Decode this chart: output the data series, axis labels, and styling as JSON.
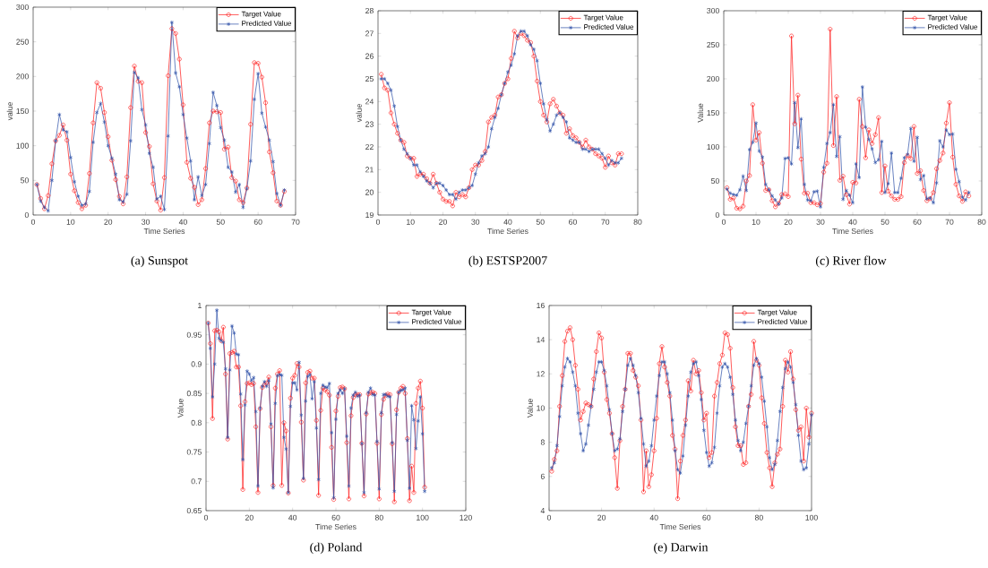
{
  "chart_data": [
    {
      "type": "line",
      "title": "(a) Sunspot",
      "xlabel": "Time Series",
      "ylabel": "value",
      "legend": "top right",
      "xlim": [
        0,
        70
      ],
      "ylim": [
        0,
        300
      ],
      "xticks": [
        0,
        10,
        20,
        30,
        40,
        50,
        60,
        70
      ],
      "yticks": [
        0,
        50,
        100,
        150,
        200,
        250,
        300
      ],
      "x": [
        1,
        2,
        3,
        4,
        5,
        6,
        7,
        8,
        9,
        10,
        11,
        12,
        13,
        14,
        15,
        16,
        17,
        18,
        19,
        20,
        21,
        22,
        23,
        24,
        25,
        26,
        27,
        28,
        29,
        30,
        31,
        32,
        33,
        34,
        35,
        36,
        37,
        38,
        39,
        40,
        41,
        42,
        43,
        44,
        45,
        46,
        47,
        48,
        49,
        50,
        51,
        52,
        53,
        54,
        55,
        56,
        57,
        58,
        59,
        60,
        61,
        62,
        63,
        64,
        65,
        66,
        67
      ],
      "series": [
        {
          "name": "Target Value",
          "color": "#ff2020",
          "marker": "circle",
          "values": [
            44,
            24,
            9,
            28,
            74,
            107,
            115,
            130,
            108,
            59,
            35,
            18,
            9,
            14,
            60,
            133,
            191,
            183,
            148,
            113,
            79,
            51,
            27,
            16,
            55,
            155,
            215,
            193,
            191,
            119,
            99,
            45,
            20,
            7,
            54,
            201,
            269,
            262,
            225,
            159,
            76,
            53,
            40,
            15,
            22,
            67,
            133,
            150,
            149,
            148,
            95,
            98,
            54,
            49,
            22,
            18,
            39,
            131,
            220,
            219,
            199,
            162,
            91,
            61,
            20,
            14,
            34
          ]
        },
        {
          "name": "Predicted Value",
          "color": "#3355aa",
          "marker": "cross",
          "values": [
            44,
            20,
            11,
            6,
            50,
            107,
            145,
            123,
            120,
            83,
            48,
            27,
            14,
            16,
            34,
            105,
            148,
            161,
            134,
            100,
            82,
            59,
            22,
            19,
            30,
            107,
            206,
            198,
            152,
            130,
            89,
            69,
            23,
            27,
            8,
            114,
            278,
            205,
            185,
            145,
            111,
            78,
            22,
            55,
            28,
            44,
            103,
            177,
            158,
            126,
            108,
            69,
            62,
            33,
            44,
            11,
            38,
            78,
            167,
            204,
            147,
            127,
            108,
            77,
            31,
            14,
            36
          ]
        }
      ]
    },
    {
      "type": "line",
      "title": "(b) ESTSP2007",
      "xlabel": "Time Series",
      "ylabel": "value",
      "legend": "top right",
      "xlim": [
        0,
        80
      ],
      "ylim": [
        19,
        28
      ],
      "xticks": [
        0,
        10,
        20,
        30,
        40,
        50,
        60,
        70,
        80
      ],
      "yticks": [
        19,
        20,
        21,
        22,
        23,
        24,
        25,
        26,
        27,
        28
      ],
      "x": [
        1,
        2,
        3,
        4,
        5,
        6,
        7,
        8,
        9,
        10,
        11,
        12,
        13,
        14,
        15,
        16,
        17,
        18,
        19,
        20,
        21,
        22,
        23,
        24,
        25,
        26,
        27,
        28,
        29,
        30,
        31,
        32,
        33,
        34,
        35,
        36,
        37,
        38,
        39,
        40,
        41,
        42,
        43,
        44,
        45,
        46,
        47,
        48,
        49,
        50,
        51,
        52,
        53,
        54,
        55,
        56,
        57,
        58,
        59,
        60,
        61,
        62,
        63,
        64,
        65,
        66,
        67,
        68,
        69,
        70,
        71,
        72,
        73,
        74,
        75
      ],
      "series": [
        {
          "name": "Target Value",
          "color": "#ff2020",
          "marker": "circle",
          "values": [
            25.2,
            24.6,
            24.5,
            23.5,
            23.0,
            22.6,
            22.3,
            22.2,
            21.6,
            21.5,
            21.5,
            20.7,
            20.8,
            20.8,
            20.6,
            20.4,
            20.8,
            20.4,
            20.0,
            19.7,
            19.6,
            19.6,
            19.4,
            20.0,
            19.8,
            19.9,
            19.8,
            20.2,
            21.0,
            21.2,
            21.2,
            21.4,
            21.8,
            23.1,
            23.3,
            23.4,
            24.2,
            24.3,
            24.8,
            25.0,
            25.9,
            27.1,
            26.8,
            27.0,
            26.9,
            26.7,
            26.6,
            26.0,
            24.9,
            24.0,
            23.4,
            23.1,
            23.9,
            24.1,
            23.8,
            23.5,
            23.4,
            22.6,
            22.8,
            22.5,
            22.4,
            22.2,
            22.0,
            22.3,
            22.0,
            21.9,
            21.7,
            21.6,
            21.5,
            21.1,
            21.6,
            21.3,
            21.2,
            21.7,
            21.7
          ]
        },
        {
          "name": "Predicted Value",
          "color": "#3355aa",
          "marker": "cross",
          "values": [
            25.0,
            25.0,
            24.8,
            24.5,
            23.8,
            22.9,
            22.3,
            21.9,
            21.7,
            21.5,
            21.2,
            21.2,
            20.9,
            20.7,
            20.5,
            20.4,
            20.2,
            20.4,
            20.4,
            20.3,
            20.1,
            19.9,
            19.9,
            19.7,
            20.0,
            20.1,
            20.1,
            20.2,
            20.3,
            20.8,
            21.3,
            21.6,
            21.7,
            22.0,
            22.8,
            23.3,
            23.7,
            24.3,
            24.8,
            25.3,
            25.6,
            26.1,
            26.9,
            27.1,
            27.1,
            26.9,
            26.5,
            26.3,
            25.8,
            24.8,
            23.9,
            23.2,
            22.7,
            23.0,
            23.4,
            23.5,
            23.3,
            23.1,
            22.4,
            22.3,
            22.2,
            22.2,
            21.9,
            21.9,
            21.8,
            21.9,
            21.9,
            21.9,
            21.7,
            21.5,
            21.2,
            21.4,
            21.3,
            21.3,
            21.5
          ]
        }
      ]
    },
    {
      "type": "line",
      "title": "(c) River flow",
      "xlabel": "Time Series",
      "ylabel": "Value",
      "legend": "top right",
      "xlim": [
        0,
        80
      ],
      "ylim": [
        0,
        300
      ],
      "xticks": [
        0,
        10,
        20,
        30,
        40,
        50,
        60,
        70,
        80
      ],
      "yticks": [
        0,
        50,
        100,
        150,
        200,
        250,
        300
      ],
      "x": [
        1,
        2,
        3,
        4,
        5,
        6,
        7,
        8,
        9,
        10,
        11,
        12,
        13,
        14,
        15,
        16,
        17,
        18,
        19,
        20,
        21,
        22,
        23,
        24,
        25,
        26,
        27,
        28,
        29,
        30,
        31,
        32,
        33,
        34,
        35,
        36,
        37,
        38,
        39,
        40,
        41,
        42,
        43,
        44,
        45,
        46,
        47,
        48,
        49,
        50,
        51,
        52,
        53,
        54,
        55,
        56,
        57,
        58,
        59,
        60,
        61,
        62,
        63,
        64,
        65,
        66,
        67,
        68,
        69,
        70,
        71,
        72,
        73,
        74,
        75,
        76
      ],
      "series": [
        {
          "name": "Target Value",
          "color": "#ff2020",
          "marker": "circle",
          "values": [
            40,
            23,
            25,
            10,
            9,
            13,
            50,
            58,
            162,
            110,
            121,
            76,
            36,
            37,
            21,
            12,
            17,
            30,
            31,
            27,
            263,
            134,
            176,
            82,
            32,
            32,
            18,
            18,
            15,
            17,
            63,
            76,
            273,
            102,
            174,
            51,
            57,
            30,
            16,
            48,
            47,
            170,
            130,
            84,
            125,
            105,
            118,
            143,
            33,
            72,
            35,
            28,
            23,
            23,
            27,
            77,
            87,
            83,
            130,
            61,
            65,
            36,
            21,
            24,
            33,
            68,
            80,
            91,
            135,
            165,
            85,
            45,
            28,
            20,
            34,
            28
          ]
        },
        {
          "name": "Predicted Value",
          "color": "#3355aa",
          "marker": "cross",
          "values": [
            38,
            32,
            30,
            29,
            37,
            57,
            36,
            96,
            107,
            135,
            94,
            85,
            45,
            37,
            28,
            22,
            16,
            25,
            83,
            84,
            75,
            165,
            99,
            141,
            45,
            22,
            21,
            34,
            35,
            12,
            70,
            105,
            121,
            162,
            86,
            115,
            23,
            36,
            29,
            18,
            75,
            55,
            188,
            129,
            111,
            97,
            77,
            81,
            108,
            33,
            46,
            91,
            33,
            33,
            54,
            84,
            89,
            127,
            79,
            114,
            52,
            58,
            24,
            25,
            18,
            47,
            109,
            100,
            125,
            118,
            119,
            67,
            49,
            26,
            22,
            33
          ]
        }
      ]
    },
    {
      "type": "line",
      "title": "(d) Poland",
      "xlabel": "Time Series",
      "ylabel": "Value",
      "legend": "top right",
      "xlim": [
        0,
        120
      ],
      "ylim": [
        0.65,
        1
      ],
      "xticks": [
        0,
        20,
        40,
        60,
        80,
        100,
        120
      ],
      "yticks": [
        0.65,
        0.7,
        0.75,
        0.8,
        0.85,
        0.9,
        0.95,
        1
      ],
      "x": [
        1,
        2,
        3,
        4,
        5,
        6,
        7,
        8,
        9,
        10,
        11,
        12,
        13,
        14,
        15,
        16,
        17,
        18,
        19,
        20,
        21,
        22,
        23,
        24,
        25,
        26,
        27,
        28,
        29,
        30,
        31,
        32,
        33,
        34,
        35,
        36,
        37,
        38,
        39,
        40,
        41,
        42,
        43,
        44,
        45,
        46,
        47,
        48,
        49,
        50,
        51,
        52,
        53,
        54,
        55,
        56,
        57,
        58,
        59,
        60,
        61,
        62,
        63,
        64,
        65,
        66,
        67,
        68,
        69,
        70,
        71,
        72,
        73,
        74,
        75,
        76,
        77,
        78,
        79,
        80,
        81,
        82,
        83,
        84,
        85,
        86,
        87,
        88,
        89,
        90,
        91,
        92,
        93,
        94,
        95,
        96,
        97,
        98,
        99,
        100,
        101
      ],
      "series": [
        {
          "name": "Target Value",
          "color": "#ff2020",
          "marker": "circle",
          "values": [
            0.97,
            0.935,
            0.807,
            0.957,
            0.958,
            0.955,
            0.94,
            0.963,
            0.883,
            0.772,
            0.918,
            0.92,
            0.922,
            0.895,
            0.895,
            0.829,
            0.686,
            0.836,
            0.867,
            0.868,
            0.865,
            0.867,
            0.793,
            0.681,
            0.824,
            0.86,
            0.865,
            0.868,
            0.878,
            0.793,
            0.693,
            0.859,
            0.883,
            0.889,
            0.693,
            0.8,
            0.786,
            0.68,
            0.842,
            0.876,
            0.881,
            0.901,
            0.895,
            0.801,
            0.702,
            0.868,
            0.886,
            0.888,
            0.876,
            0.876,
            0.804,
            0.676,
            0.821,
            0.859,
            0.856,
            0.853,
            0.847,
            0.758,
            0.669,
            0.82,
            0.845,
            0.86,
            0.861,
            0.858,
            0.766,
            0.67,
            0.812,
            0.843,
            0.848,
            0.848,
            0.848,
            0.765,
            0.675,
            0.815,
            0.849,
            0.851,
            0.852,
            0.85,
            0.765,
            0.67,
            0.814,
            0.84,
            0.847,
            0.849,
            0.848,
            0.764,
            0.665,
            0.822,
            0.852,
            0.859,
            0.862,
            0.85,
            0.773,
            0.667,
            0.726,
            0.681,
            0.833,
            0.859,
            0.871,
            0.825,
            0.69
          ]
        },
        {
          "name": "Predicted Value",
          "color": "#3355aa",
          "marker": "cross",
          "values": [
            0.97,
            0.927,
            0.844,
            0.9,
            0.992,
            0.944,
            0.94,
            0.937,
            0.892,
            0.775,
            0.89,
            0.965,
            0.953,
            0.917,
            0.916,
            0.849,
            0.737,
            0.83,
            0.888,
            0.883,
            0.872,
            0.877,
            0.819,
            0.692,
            0.825,
            0.862,
            0.87,
            0.862,
            0.872,
            0.798,
            0.689,
            0.833,
            0.88,
            0.882,
            0.881,
            0.775,
            0.755,
            0.681,
            0.828,
            0.868,
            0.868,
            0.856,
            0.903,
            0.813,
            0.705,
            0.837,
            0.879,
            0.882,
            0.841,
            0.87,
            0.791,
            0.703,
            0.85,
            0.864,
            0.861,
            0.86,
            0.867,
            0.783,
            0.672,
            0.806,
            0.85,
            0.856,
            0.85,
            0.858,
            0.777,
            0.692,
            0.825,
            0.847,
            0.852,
            0.845,
            0.847,
            0.764,
            0.681,
            0.817,
            0.852,
            0.859,
            0.848,
            0.847,
            0.768,
            0.687,
            0.817,
            0.848,
            0.848,
            0.845,
            0.844,
            0.766,
            0.683,
            0.814,
            0.852,
            0.855,
            0.856,
            0.859,
            0.77,
            0.688,
            0.829,
            0.805,
            0.756,
            0.803,
            0.844,
            0.781,
            0.683
          ]
        }
      ]
    },
    {
      "type": "line",
      "title": "(e) Darwin",
      "xlabel": "Time Series",
      "ylabel": "Value",
      "legend": "top right",
      "xlim": [
        0,
        100
      ],
      "ylim": [
        4,
        16
      ],
      "xticks": [
        0,
        20,
        40,
        60,
        80,
        100
      ],
      "yticks": [
        4,
        6,
        8,
        10,
        12,
        14,
        16
      ],
      "x": [
        1,
        2,
        3,
        4,
        5,
        6,
        7,
        8,
        9,
        10,
        11,
        12,
        13,
        14,
        15,
        16,
        17,
        18,
        19,
        20,
        21,
        22,
        23,
        24,
        25,
        26,
        27,
        28,
        29,
        30,
        31,
        32,
        33,
        34,
        35,
        36,
        37,
        38,
        39,
        40,
        41,
        42,
        43,
        44,
        45,
        46,
        47,
        48,
        49,
        50,
        51,
        52,
        53,
        54,
        55,
        56,
        57,
        58,
        59,
        60,
        61,
        62,
        63,
        64,
        65,
        66,
        67,
        68,
        69,
        70,
        71,
        72,
        73,
        74,
        75,
        76,
        77,
        78,
        79,
        80,
        81,
        82,
        83,
        84,
        85,
        86,
        87,
        88,
        89,
        90,
        91,
        92,
        93,
        94,
        95,
        96,
        97,
        98,
        99,
        100
      ],
      "series": [
        {
          "name": "Target Value",
          "color": "#ff2020",
          "marker": "circle",
          "values": [
            6.3,
            7.0,
            7.5,
            10.1,
            11.9,
            13.9,
            14.5,
            14.7,
            14.0,
            12.5,
            11.1,
            9.3,
            9.8,
            10.3,
            10.2,
            10.1,
            11.7,
            13.3,
            14.4,
            14.1,
            12.1,
            10.5,
            9.7,
            8.5,
            7.1,
            5.3,
            8.1,
            10.1,
            11.1,
            13.2,
            13.2,
            12.2,
            11.8,
            11.3,
            9.3,
            5.1,
            7.5,
            5.4,
            6.1,
            7.5,
            9.4,
            12.6,
            13.6,
            12.4,
            11.5,
            10.7,
            8.4,
            7.6,
            4.7,
            6.9,
            8.4,
            9.3,
            11.6,
            11.0,
            12.8,
            12.0,
            12.2,
            10.9,
            9.3,
            9.7,
            7.1,
            7.4,
            10.7,
            11.5,
            12.6,
            13.1,
            14.4,
            14.3,
            13.5,
            11.2,
            8.9,
            7.8,
            7.8,
            6.7,
            6.8,
            10.1,
            10.8,
            13.9,
            12.8,
            12.5,
            10.6,
            9.1,
            7.4,
            6.5,
            5.4,
            6.8,
            7.3,
            7.6,
            10.1,
            12.8,
            12.1,
            13.3,
            11.7,
            9.9,
            8.7,
            8.9,
            6.9,
            10.0,
            8.3,
            9.7
          ]
        },
        {
          "name": "Predicted Value",
          "color": "#3355aa",
          "marker": "cross",
          "values": [
            6.5,
            6.8,
            7.8,
            9.5,
            11.3,
            12.4,
            12.9,
            12.7,
            12.1,
            11.3,
            9.7,
            8.5,
            7.5,
            7.9,
            9.0,
            10.1,
            11.1,
            12.1,
            12.7,
            12.7,
            12.2,
            11.3,
            9.9,
            8.5,
            7.5,
            7.6,
            8.2,
            9.8,
            11.1,
            12.5,
            12.9,
            12.5,
            11.9,
            10.9,
            9.4,
            7.9,
            6.6,
            6.9,
            7.8,
            9.3,
            10.7,
            11.9,
            12.7,
            12.7,
            12.0,
            10.9,
            9.3,
            7.5,
            6.4,
            6.2,
            7.2,
            9.0,
            10.7,
            12.1,
            12.6,
            12.7,
            11.9,
            10.5,
            8.7,
            7.4,
            6.6,
            6.8,
            7.7,
            9.7,
            11.3,
            12.4,
            12.6,
            12.4,
            11.8,
            10.8,
            9.3,
            8.1,
            7.5,
            8.0,
            9.1,
            10.1,
            11.3,
            12.5,
            12.9,
            12.6,
            11.8,
            10.4,
            8.9,
            7.1,
            6.4,
            6.7,
            8.1,
            9.8,
            11.2,
            12.3,
            12.7,
            12.4,
            11.5,
            10.2,
            8.4,
            6.9,
            6.4,
            6.5,
            7.9,
            9.6
          ]
        }
      ]
    }
  ]
}
